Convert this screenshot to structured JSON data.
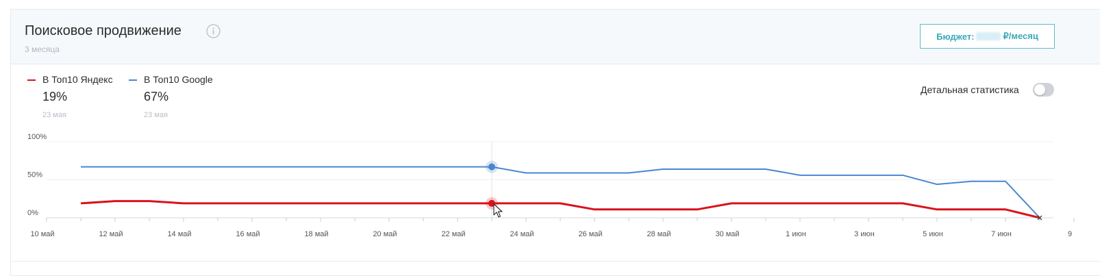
{
  "header": {
    "title": "Поисковое продвижение",
    "subtitle": "3 месяца",
    "budget_prefix": "Бюджет:",
    "budget_suffix": "₽/месяц"
  },
  "legend": [
    {
      "name": "В Топ10 Яндекс",
      "value": "19%",
      "date": "23 мая",
      "color": "#d9121b"
    },
    {
      "name": "В Топ10 Google",
      "value": "67%",
      "date": "23 мая",
      "color": "#4a86d0"
    }
  ],
  "detail_stats_label": "Детальная статистика",
  "detail_stats_enabled": false,
  "colors": {
    "accent": "#3aa9b7",
    "yandex": "#d9121b",
    "google": "#4a86d0"
  },
  "chart_data": {
    "type": "line",
    "y_ticks": [
      "0%",
      "50%",
      "100%"
    ],
    "ylim": [
      0,
      100
    ],
    "x_ticks": [
      "10 май",
      "12 май",
      "14 май",
      "16 май",
      "18 май",
      "20 май",
      "22 май",
      "24 май",
      "26 май",
      "28 май",
      "30 май",
      "1 июн",
      "3 июн",
      "5 июн",
      "7 июн",
      "9"
    ],
    "x": [
      "11 май",
      "12 май",
      "13 май",
      "14 май",
      "15 май",
      "16 май",
      "17 май",
      "18 май",
      "19 май",
      "20 май",
      "21 май",
      "22 май",
      "23 май",
      "24 май",
      "25 май",
      "26 май",
      "27 май",
      "28 май",
      "29 май",
      "30 май",
      "31 май",
      "1 июн",
      "2 июн",
      "3 июн",
      "4 июн",
      "5 июн",
      "6 июн",
      "7 июн",
      "8 июн"
    ],
    "series": [
      {
        "name": "В Топ10 Google",
        "values": [
          67,
          67,
          67,
          67,
          67,
          67,
          67,
          67,
          67,
          67,
          67,
          67,
          67,
          59,
          59,
          59,
          59,
          64,
          64,
          64,
          64,
          56,
          56,
          56,
          56,
          44,
          48,
          48,
          0
        ]
      },
      {
        "name": "В Топ10 Яндекс",
        "values": [
          19,
          22,
          22,
          19,
          19,
          19,
          19,
          19,
          19,
          19,
          19,
          19,
          19,
          19,
          19,
          11,
          11,
          11,
          11,
          19,
          19,
          19,
          19,
          19,
          19,
          11,
          11,
          11,
          0
        ]
      }
    ],
    "hover_index": 12,
    "grid": true
  }
}
